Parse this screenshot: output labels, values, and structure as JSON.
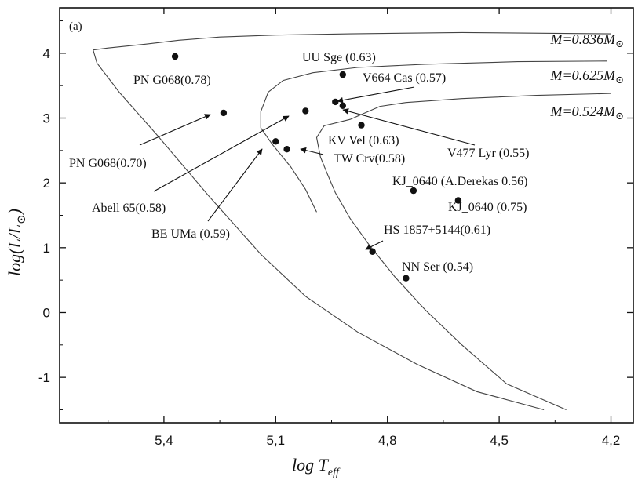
{
  "chart_data": {
    "type": "scatter",
    "panel_label": "(a)",
    "xlabel": "log T",
    "xlabel_sub": "eff",
    "ylabel": "log(L/L",
    "ylabel_sub": "⊙",
    "ylabel_close": ")",
    "xlim": [
      5.68,
      4.14
    ],
    "ylim": [
      -1.7,
      4.7
    ],
    "x_reversed": true,
    "x_ticks": [
      5.4,
      5.1,
      4.8,
      4.5,
      4.2
    ],
    "x_tick_labels": [
      "5,4",
      "5,1",
      "4,8",
      "4,5",
      "4,2"
    ],
    "y_ticks": [
      -1,
      0,
      1,
      2,
      3,
      4
    ],
    "y_tick_labels": [
      "-1",
      "0",
      "1",
      "2",
      "3",
      "4"
    ],
    "grid": false,
    "tracks": [
      {
        "mass_label": "M=0.836M",
        "mass_symbol": "⊙",
        "points": [
          [
            4.2,
            4.3
          ],
          [
            4.6,
            4.32
          ],
          [
            4.9,
            4.3
          ],
          [
            5.1,
            4.28
          ],
          [
            5.25,
            4.25
          ],
          [
            5.36,
            4.2
          ],
          [
            5.45,
            4.14
          ],
          [
            5.55,
            4.08
          ],
          [
            5.59,
            4.05
          ],
          [
            5.58,
            3.85
          ],
          [
            5.52,
            3.4
          ],
          [
            5.42,
            2.75
          ],
          [
            5.28,
            1.8
          ],
          [
            5.14,
            0.9
          ],
          [
            5.02,
            0.25
          ],
          [
            4.88,
            -0.3
          ],
          [
            4.72,
            -0.8
          ],
          [
            4.56,
            -1.22
          ],
          [
            4.38,
            -1.5
          ]
        ]
      },
      {
        "mass_label": "M=0.625M",
        "mass_symbol": "⊙",
        "points": [
          [
            4.21,
            3.88
          ],
          [
            4.45,
            3.87
          ],
          [
            4.7,
            3.83
          ],
          [
            4.88,
            3.78
          ],
          [
            5.0,
            3.7
          ],
          [
            5.08,
            3.58
          ],
          [
            5.12,
            3.4
          ],
          [
            5.14,
            3.1
          ],
          [
            5.14,
            2.85
          ],
          [
            5.11,
            2.6
          ],
          [
            5.06,
            2.25
          ],
          [
            5.02,
            1.9
          ],
          [
            4.99,
            1.55
          ]
        ]
      },
      {
        "mass_label": "M=0.524M",
        "mass_symbol": "⊙",
        "points": [
          [
            4.2,
            3.38
          ],
          [
            4.4,
            3.35
          ],
          [
            4.6,
            3.3
          ],
          [
            4.75,
            3.24
          ],
          [
            4.82,
            3.18
          ],
          [
            4.86,
            3.08
          ],
          [
            4.9,
            2.98
          ],
          [
            4.97,
            2.88
          ],
          [
            4.99,
            2.7
          ],
          [
            4.98,
            2.4
          ],
          [
            4.96,
            2.12
          ],
          [
            4.94,
            1.85
          ],
          [
            4.9,
            1.45
          ],
          [
            4.85,
            1.05
          ],
          [
            4.78,
            0.55
          ],
          [
            4.7,
            0.05
          ],
          [
            4.6,
            -0.5
          ],
          [
            4.48,
            -1.1
          ],
          [
            4.32,
            -1.5
          ]
        ]
      }
    ],
    "points": [
      {
        "name": "PN G068(0.78)",
        "x": 5.37,
        "y": 3.95
      },
      {
        "name": "PN G068(0.70)",
        "x": 5.24,
        "y": 3.08
      },
      {
        "name": "Abell 65(0.58)",
        "x": 5.02,
        "y": 3.11
      },
      {
        "name": "BE UMa (0.59)",
        "x": 5.1,
        "y": 2.64
      },
      {
        "name": "TW Crv(0.58)",
        "x": 5.07,
        "y": 2.52
      },
      {
        "name": "UU Sge (0.63)",
        "x": 4.92,
        "y": 3.67
      },
      {
        "name": "V664 Cas (0.57)",
        "x": 4.94,
        "y": 3.25
      },
      {
        "name": "V477 Lyr (0.55)",
        "x": 4.92,
        "y": 3.19
      },
      {
        "name": "KV Vel (0.63)",
        "x": 4.87,
        "y": 2.89
      },
      {
        "name": "KJ_0640 (A.Derekas 0.56)",
        "x": 4.73,
        "y": 1.88
      },
      {
        "name": "KJ_0640 (0.75)",
        "x": 4.61,
        "y": 1.73
      },
      {
        "name": "HS 1857+5144(0.61)",
        "x": 4.84,
        "y": 0.94
      },
      {
        "name": "NN Ser (0.54)",
        "x": 4.75,
        "y": 0.53
      }
    ]
  }
}
